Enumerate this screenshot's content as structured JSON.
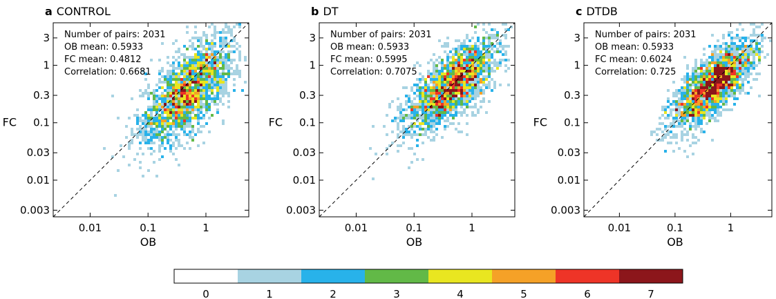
{
  "colors": {
    "bins": [
      "#ffffff",
      "#a8d3e2",
      "#28b2ea",
      "#62b947",
      "#e9e620",
      "#f5a127",
      "#ee3427",
      "#8c161b"
    ],
    "frame": "#000000",
    "diagonal": "#000000"
  },
  "chart_data": [
    {
      "type": "heatmap",
      "panel": "a",
      "title": "CONTROL",
      "xlabel": "OB",
      "ylabel": "FC",
      "scale": "log",
      "xlim": [
        0.0023,
        5.5
      ],
      "ylim": [
        0.0023,
        5.5
      ],
      "xticks": [
        0.01,
        0.1,
        1
      ],
      "xtick_labels": [
        "0.01",
        "0.1",
        "1"
      ],
      "yticks": [
        0.003,
        0.01,
        0.03,
        0.1,
        0.3,
        1,
        3
      ],
      "ytick_labels": [
        "0.003",
        "0.01",
        "0.03",
        "0.1",
        "0.3",
        "1",
        "3"
      ],
      "reference_line": "1:1 dashed",
      "stats": [
        "Number of pairs: 2031",
        "OB mean: 0.5933",
        "FC mean: 0.4812",
        "Correlation: 0.6681"
      ],
      "density_center_log10": [
        -0.3,
        -0.45
      ],
      "density_spread_log10": [
        0.42,
        0.48
      ],
      "density_correlation": 0.67
    },
    {
      "type": "heatmap",
      "panel": "b",
      "title": "DT",
      "xlabel": "OB",
      "ylabel": "FC",
      "scale": "log",
      "xlim": [
        0.0023,
        5.5
      ],
      "ylim": [
        0.0023,
        5.5
      ],
      "xticks": [
        0.01,
        0.1,
        1
      ],
      "xtick_labels": [
        "0.01",
        "0.1",
        "1"
      ],
      "yticks": [
        0.003,
        0.01,
        0.03,
        0.1,
        0.3,
        1,
        3
      ],
      "ytick_labels": [
        "0.003",
        "0.01",
        "0.03",
        "0.1",
        "0.3",
        "1",
        "3"
      ],
      "reference_line": "1:1 dashed",
      "stats": [
        "Number of pairs: 2031",
        "OB mean: 0.5933",
        "FC mean: 0.5995",
        "Correlation: 0.7075"
      ],
      "density_center_log10": [
        -0.35,
        -0.35
      ],
      "density_spread_log10": [
        0.42,
        0.42
      ],
      "density_correlation": 0.71
    },
    {
      "type": "heatmap",
      "panel": "c",
      "title": "DTDB",
      "xlabel": "OB",
      "ylabel": "FC",
      "scale": "log",
      "xlim": [
        0.0023,
        5.5
      ],
      "ylim": [
        0.0023,
        5.5
      ],
      "xticks": [
        0.01,
        0.1,
        1
      ],
      "xtick_labels": [
        "0.01",
        "0.1",
        "1"
      ],
      "yticks": [
        0.003,
        0.01,
        0.03,
        0.1,
        0.3,
        1,
        3
      ],
      "ytick_labels": [
        "0.003",
        "0.01",
        "0.03",
        "0.1",
        "0.3",
        "1",
        "3"
      ],
      "reference_line": "1:1 dashed",
      "stats": [
        "Number of pairs: 2031",
        "OB mean: 0.5933",
        "FC mean: 0.6024",
        "Correlation: 0.725"
      ],
      "density_center_log10": [
        -0.3,
        -0.33
      ],
      "density_spread_log10": [
        0.38,
        0.4
      ],
      "density_correlation": 0.73
    }
  ],
  "colorbar": {
    "labels": [
      "0",
      "1",
      "2",
      "3",
      "4",
      "5",
      "6",
      "7"
    ]
  }
}
